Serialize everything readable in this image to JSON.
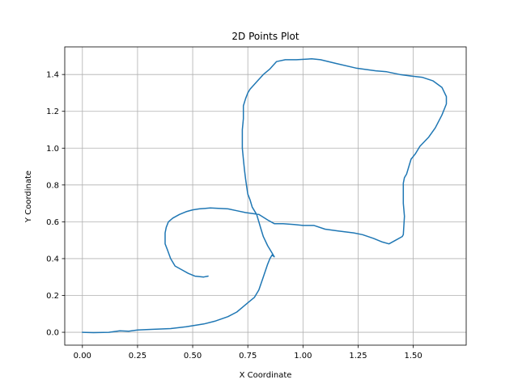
{
  "chart_data": {
    "type": "line",
    "title": "2D Points Plot",
    "xlabel": "X Coordinate",
    "ylabel": "Y Coordinate",
    "xlim": [
      -0.08,
      1.74
    ],
    "ylim": [
      -0.07,
      1.55
    ],
    "xticks": [
      0.0,
      0.25,
      0.5,
      0.75,
      1.0,
      1.25,
      1.5
    ],
    "xtick_labels": [
      "0.00",
      "0.25",
      "0.50",
      "0.75",
      "1.00",
      "1.25",
      "1.50"
    ],
    "yticks": [
      0.0,
      0.2,
      0.4,
      0.6,
      0.8,
      1.0,
      1.2,
      1.4
    ],
    "ytick_labels": [
      "0.0",
      "0.2",
      "0.4",
      "0.6",
      "0.8",
      "1.0",
      "1.2",
      "1.4"
    ],
    "grid": true,
    "series": [
      {
        "color": "#1f77b4",
        "x": [
          0.0,
          0.05,
          0.12,
          0.17,
          0.21,
          0.25,
          0.3,
          0.4,
          0.47,
          0.55,
          0.6,
          0.66,
          0.7,
          0.75,
          0.78,
          0.8,
          0.82,
          0.84,
          0.85,
          0.86,
          0.87,
          0.86,
          0.84,
          0.82,
          0.81,
          0.8,
          0.79,
          0.77,
          0.76,
          0.75,
          0.745,
          0.74,
          0.735,
          0.73,
          0.725,
          0.725,
          0.73,
          0.73,
          0.74,
          0.75,
          0.76,
          0.79,
          0.82,
          0.85,
          0.88,
          0.92,
          0.97,
          1.04,
          1.08,
          1.15,
          1.24,
          1.33,
          1.38,
          1.44,
          1.5,
          1.54,
          1.59,
          1.63,
          1.65,
          1.65,
          1.63,
          1.6,
          1.57,
          1.53,
          1.51,
          1.49,
          1.48,
          1.47,
          1.46,
          1.455,
          1.455,
          1.455,
          1.46,
          1.455,
          1.45,
          1.42,
          1.39,
          1.36,
          1.32,
          1.27,
          1.23,
          1.16,
          1.1,
          1.05,
          1.0,
          0.96,
          0.91,
          0.87,
          0.84,
          0.8,
          0.74,
          0.7,
          0.66,
          0.58,
          0.53,
          0.5,
          0.47,
          0.44,
          0.41,
          0.39,
          0.38,
          0.375,
          0.375,
          0.385,
          0.4,
          0.42,
          0.45,
          0.48,
          0.51,
          0.55,
          0.57
        ],
        "y": [
          0.0,
          -0.002,
          0.0,
          0.008,
          0.006,
          0.012,
          0.015,
          0.02,
          0.03,
          0.045,
          0.06,
          0.085,
          0.11,
          0.16,
          0.19,
          0.23,
          0.3,
          0.37,
          0.4,
          0.42,
          0.41,
          0.43,
          0.47,
          0.52,
          0.56,
          0.6,
          0.64,
          0.68,
          0.72,
          0.75,
          0.79,
          0.83,
          0.88,
          0.94,
          1.0,
          1.1,
          1.16,
          1.23,
          1.27,
          1.3,
          1.32,
          1.36,
          1.4,
          1.43,
          1.47,
          1.48,
          1.48,
          1.485,
          1.48,
          1.46,
          1.435,
          1.42,
          1.415,
          1.4,
          1.39,
          1.385,
          1.365,
          1.33,
          1.28,
          1.24,
          1.18,
          1.11,
          1.06,
          1.01,
          0.97,
          0.94,
          0.9,
          0.86,
          0.84,
          0.81,
          0.77,
          0.7,
          0.63,
          0.53,
          0.52,
          0.5,
          0.48,
          0.49,
          0.51,
          0.53,
          0.54,
          0.55,
          0.56,
          0.58,
          0.58,
          0.585,
          0.59,
          0.59,
          0.61,
          0.64,
          0.65,
          0.66,
          0.67,
          0.675,
          0.67,
          0.665,
          0.655,
          0.64,
          0.62,
          0.6,
          0.57,
          0.54,
          0.48,
          0.45,
          0.4,
          0.36,
          0.34,
          0.32,
          0.305,
          0.3,
          0.305
        ]
      }
    ]
  }
}
